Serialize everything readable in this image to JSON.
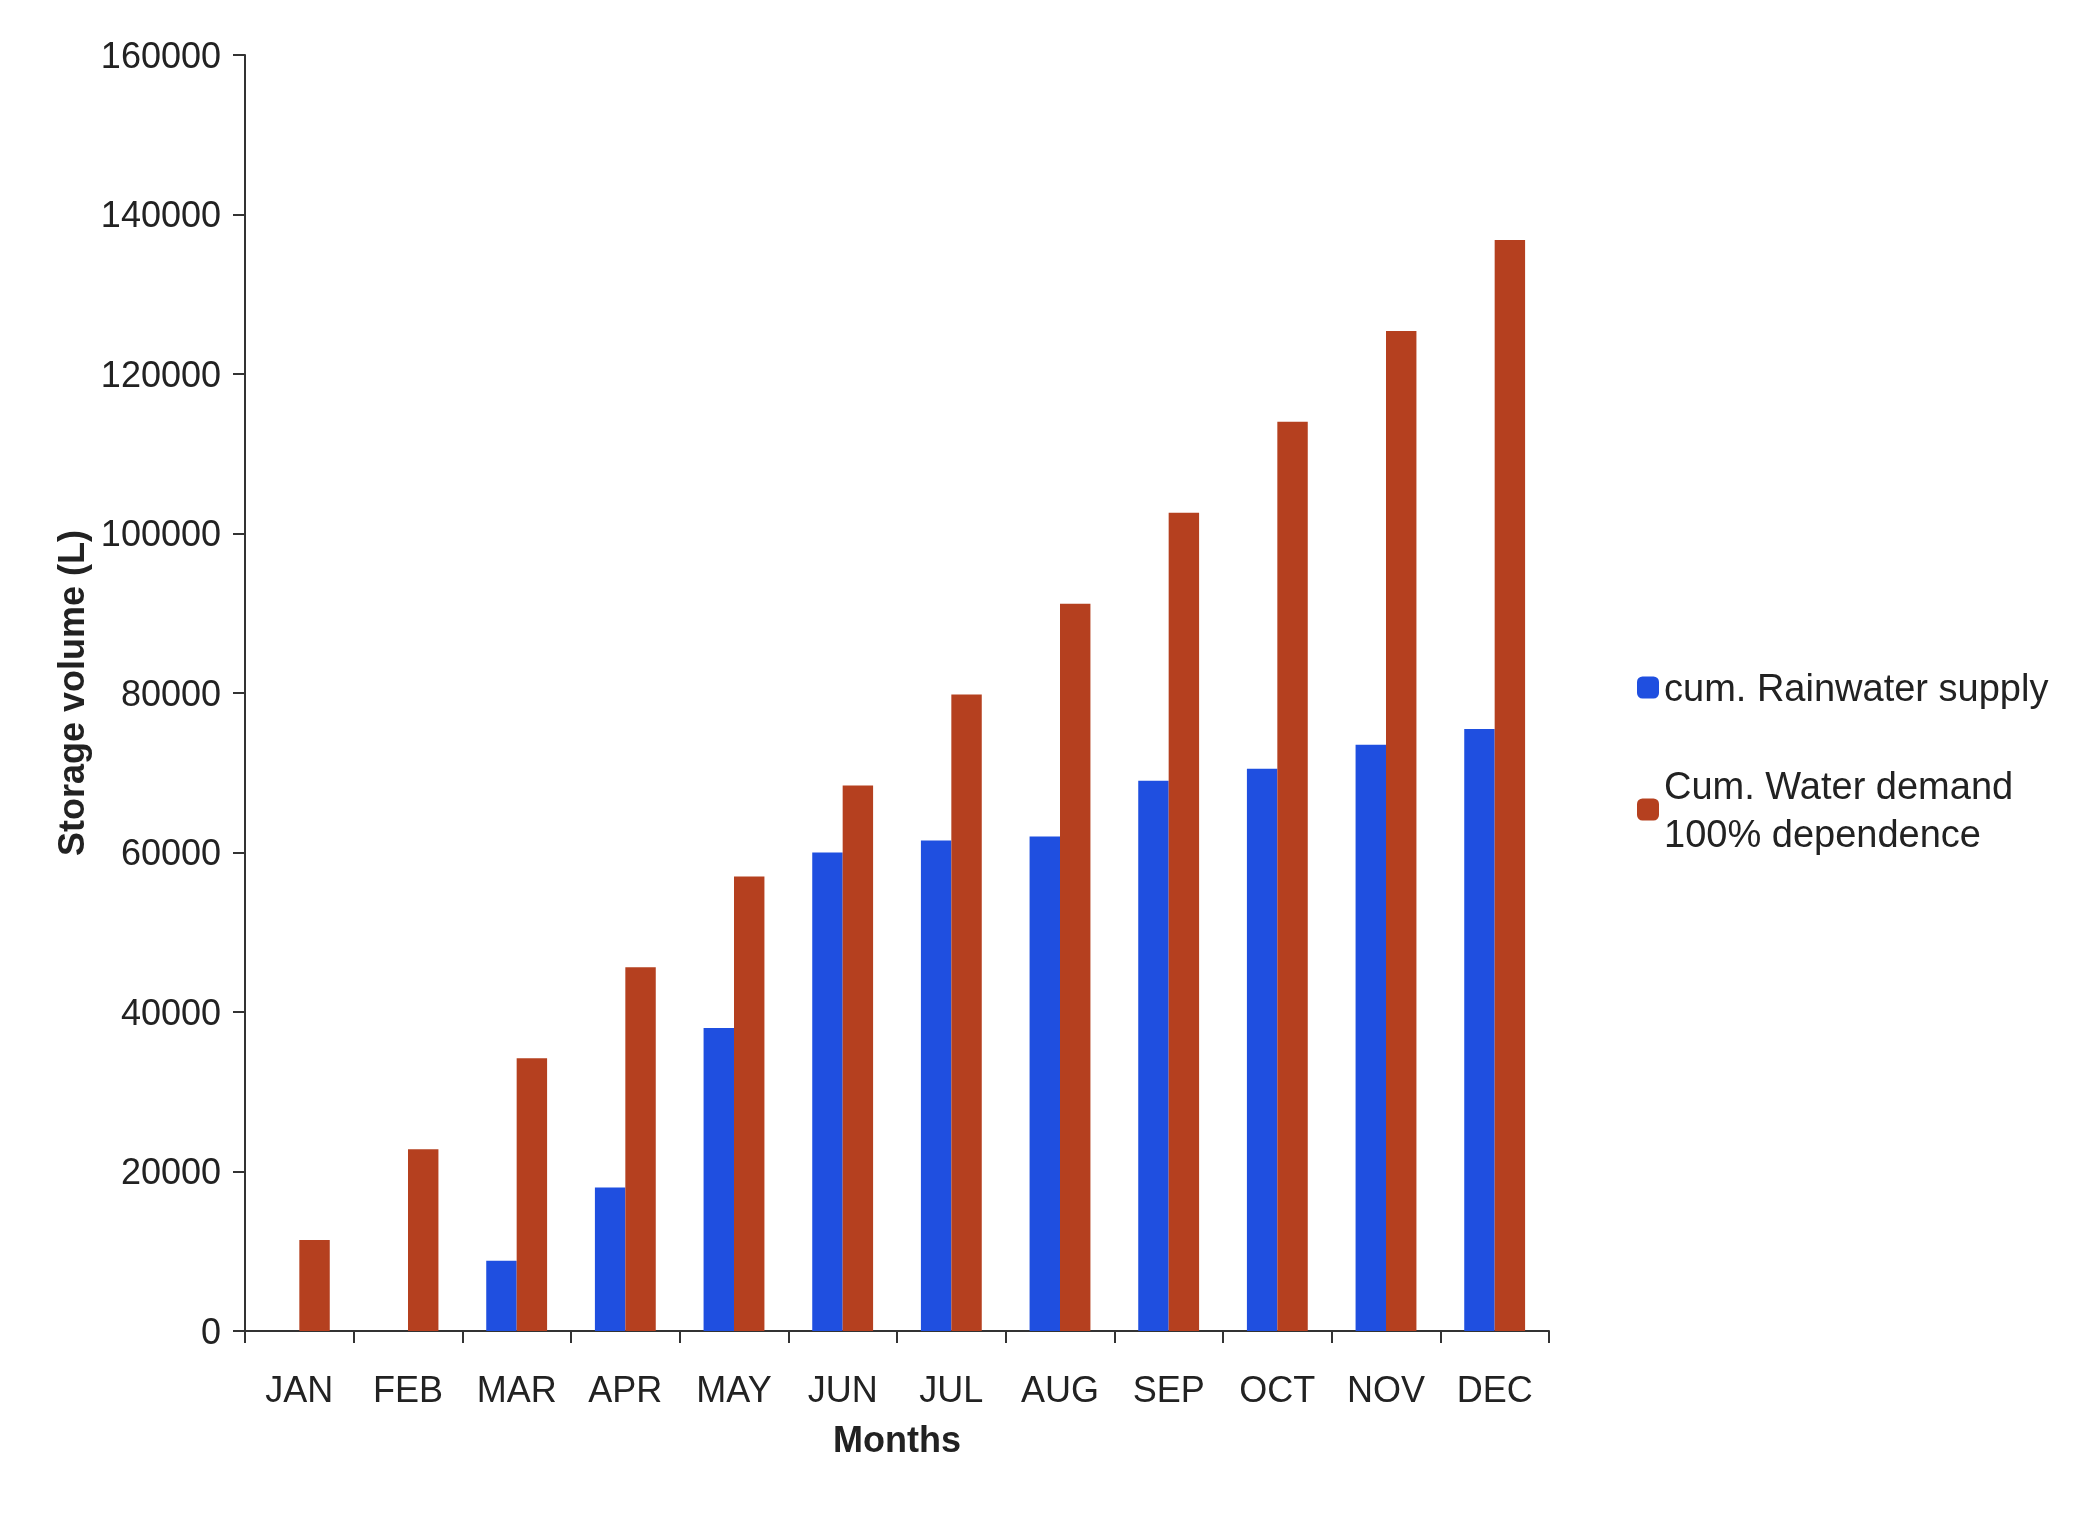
{
  "chart_data": {
    "type": "bar",
    "xlabel": "Months",
    "ylabel": "Storage volume (L)",
    "categories": [
      "JAN",
      "FEB",
      "MAR",
      "APR",
      "MAY",
      "JUN",
      "JUL",
      "AUG",
      "SEP",
      "OCT",
      "NOV",
      "DEC"
    ],
    "series": [
      {
        "name": "cum. Rainwater supply",
        "color": "#1f4fe0",
        "values": [
          0,
          0,
          8800,
          18000,
          38000,
          60000,
          61500,
          62000,
          69000,
          70500,
          73500,
          75500
        ]
      },
      {
        "name": "Cum. Water demand 100% dependence",
        "color": "#b5401f",
        "values": [
          11400,
          22800,
          34200,
          45600,
          57000,
          68400,
          79800,
          91200,
          102600,
          114000,
          125400,
          136800
        ]
      }
    ],
    "ylim": [
      0,
      160000
    ],
    "yticks": [
      0,
      20000,
      40000,
      60000,
      80000,
      100000,
      120000,
      140000,
      160000
    ],
    "grid": false,
    "legend": "right"
  }
}
